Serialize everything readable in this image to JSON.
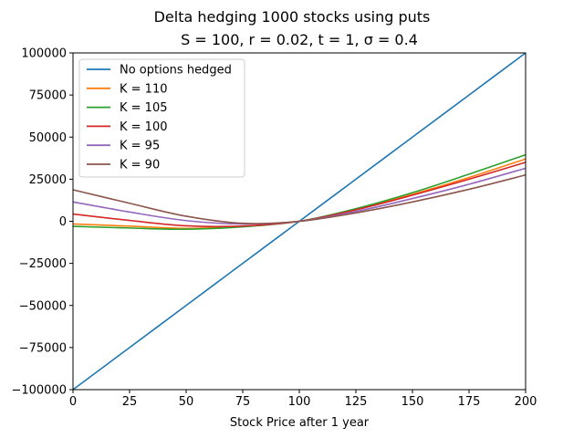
{
  "chart_data": {
    "type": "line",
    "title": "Delta hedging 1000 stocks using puts",
    "subtitle": "S = 100, r = 0.02, t = 1, σ = 0.4",
    "xlabel": "Stock Price after 1 year",
    "ylabel": "",
    "xlim": [
      0,
      200
    ],
    "ylim": [
      -100000,
      100000
    ],
    "xticks": [
      0,
      25,
      50,
      75,
      100,
      125,
      150,
      175,
      200
    ],
    "yticks": [
      -100000,
      -75000,
      -50000,
      -25000,
      0,
      25000,
      50000,
      75000,
      100000
    ],
    "grid": false,
    "legend_position": "upper-left",
    "x": [
      0,
      25,
      50,
      75,
      100,
      125,
      150,
      175,
      200
    ],
    "series": [
      {
        "name": "No options hedged",
        "color": "#1f77b4",
        "values": [
          -100000,
          -75000,
          -50000,
          -25000,
          0,
          25000,
          50000,
          75000,
          100000
        ]
      },
      {
        "name": "K = 110",
        "color": "#ff7f0e",
        "values": [
          -1600,
          -2900,
          -4200,
          -3000,
          0,
          7000,
          16000,
          26000,
          37000
        ]
      },
      {
        "name": "K = 105",
        "color": "#2ca02c",
        "values": [
          -3000,
          -4000,
          -4700,
          -3300,
          0,
          7500,
          17000,
          28000,
          39500
        ]
      },
      {
        "name": "K = 100",
        "color": "#d62728",
        "values": [
          4300,
          500,
          -2700,
          -2800,
          0,
          6800,
          15500,
          25000,
          35000
        ]
      },
      {
        "name": "K = 95",
        "color": "#9467bd",
        "values": [
          11500,
          5500,
          400,
          -1600,
          0,
          5800,
          13500,
          22000,
          31500
        ]
      },
      {
        "name": "K = 90",
        "color": "#8c564b",
        "values": [
          18700,
          10700,
          3000,
          -1200,
          0,
          5000,
          11500,
          19000,
          27500
        ]
      }
    ]
  }
}
